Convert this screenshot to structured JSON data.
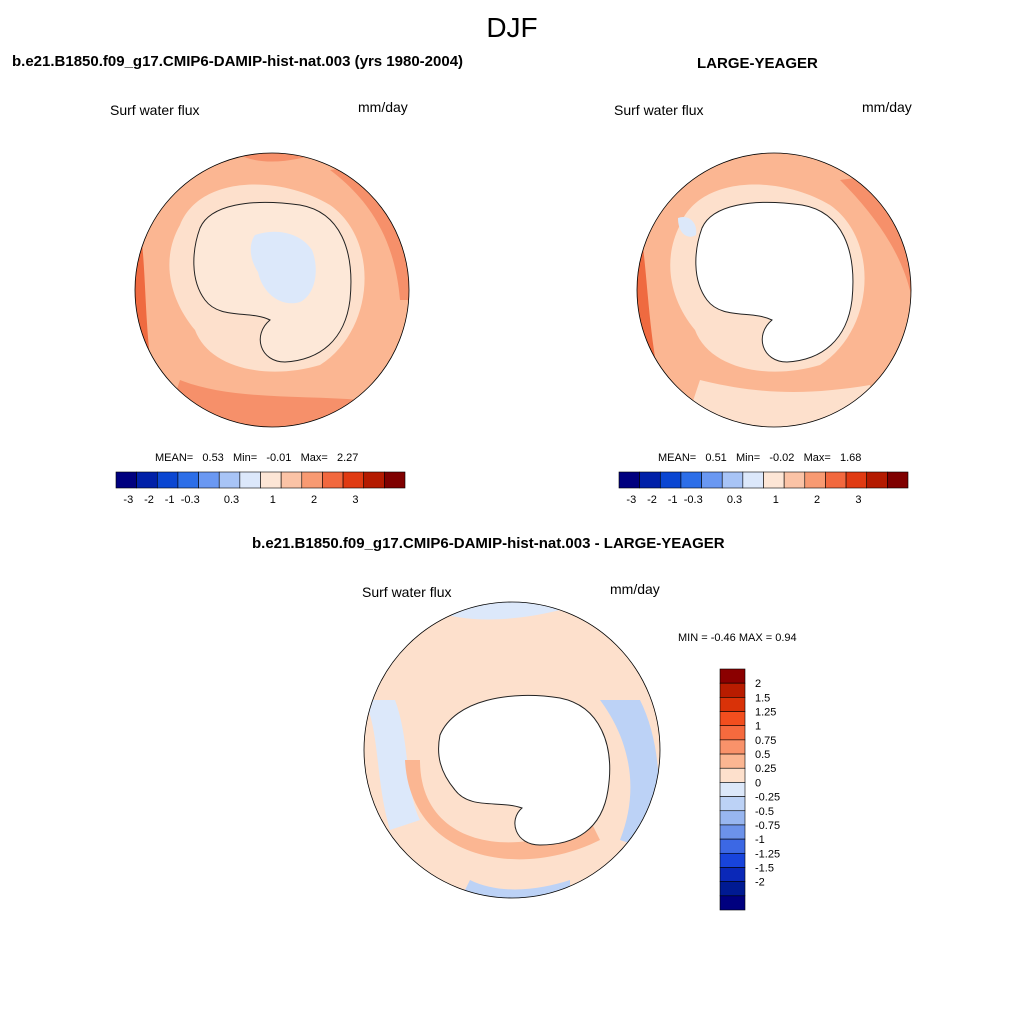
{
  "season": "DJF",
  "panels": [
    {
      "title": "b.e21.B1850.f09_g17.CMIP6-DAMIP-hist-nat.003 (yrs 1980-2004)",
      "variable": "Surf water flux",
      "units": "mm/day",
      "stats": {
        "mean_label": "MEAN=",
        "mean": "0.53",
        "min_label": "Min=",
        "min": "-0.01",
        "max_label": "Max=",
        "max": "2.27"
      }
    },
    {
      "title": "LARGE-YEAGER",
      "variable": "Surf water flux",
      "units": "mm/day",
      "stats": {
        "mean_label": "MEAN=",
        "mean": "0.51",
        "min_label": "Min=",
        "min": "-0.02",
        "max_label": "Max=",
        "max": "1.68"
      }
    }
  ],
  "diff_panel": {
    "title": "b.e21.B1850.f09_g17.CMIP6-DAMIP-hist-nat.003 - LARGE-YEAGER",
    "variable": "Surf water flux",
    "units": "mm/day",
    "minmax": "MIN =  -0.46 MAX =   0.94"
  },
  "colorbar_horizontal": {
    "colors": [
      "#00007f",
      "#0020a8",
      "#0a46d2",
      "#2c6ee8",
      "#6a98f2",
      "#a8c4f6",
      "#dce8fb",
      "#fde6d6",
      "#fbc3a6",
      "#f89a72",
      "#f2683e",
      "#e03a12",
      "#b41a00",
      "#7f0000"
    ],
    "labels": [
      "-3",
      "-2",
      "-1",
      "-0.3",
      "0.3",
      "1",
      "2",
      "3"
    ]
  },
  "colorbar_vertical": {
    "colors": [
      "#8b0000",
      "#b81c00",
      "#d93208",
      "#f24e1e",
      "#f66a3e",
      "#f9926a",
      "#fbb692",
      "#fde0cc",
      "#dce8fa",
      "#bcd2f6",
      "#98b6f0",
      "#6c92ea",
      "#3c68e4",
      "#1844dc",
      "#0a28b8",
      "#001a92",
      "#00007f"
    ],
    "labels": [
      "2",
      "1.5",
      "1.25",
      "1",
      "0.75",
      "0.5",
      "0.25",
      "0",
      "-0.25",
      "-0.5",
      "-0.75",
      "-1",
      "-1.25",
      "-1.5",
      "-2"
    ]
  },
  "colors": {
    "land": "#ffffff",
    "ocean_low": "#fde0cc",
    "ocean_mid": "#fbb692",
    "ocean_high": "#f6906a",
    "ocean_peak": "#ef6a40",
    "negative_light": "#dce8fa",
    "negative_mid": "#bcd2f6",
    "negative_strong": "#98b6f0"
  }
}
